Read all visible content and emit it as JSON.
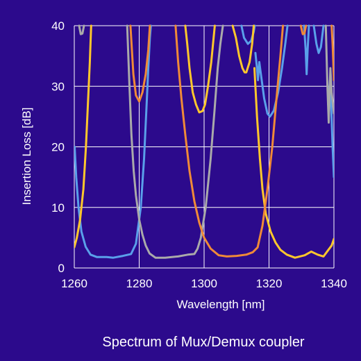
{
  "chart_data": {
    "type": "line",
    "title": "",
    "caption": "Spectrum of Mux/Demux coupler",
    "xlabel": "Wavelength [nm]",
    "ylabel": "Insertion Loss [dB]",
    "xlim": [
      1260,
      1340
    ],
    "ylim": [
      0,
      40
    ],
    "xticks": [
      1260,
      1280,
      1300,
      1320,
      1340
    ],
    "yticks": [
      0,
      10,
      20,
      30,
      40
    ],
    "grid": true,
    "colors": {
      "background": "#2c0a8c",
      "grid": "#ffffff",
      "text": "#ffffff"
    },
    "series": [
      {
        "color": "#5aa0ea",
        "points": [
          [
            1260.1,
            20
          ],
          [
            1260.6,
            15
          ],
          [
            1261.3,
            10
          ],
          [
            1262.2,
            6
          ],
          [
            1263.5,
            3.5
          ],
          [
            1265,
            2.2
          ],
          [
            1267,
            1.8
          ],
          [
            1270,
            1.8
          ],
          [
            1272,
            1.7
          ],
          [
            1275,
            2.0
          ],
          [
            1277.5,
            2.3
          ],
          [
            1279,
            4
          ],
          [
            1280.5,
            10
          ],
          [
            1281.5,
            18
          ],
          [
            1282.2,
            26
          ],
          [
            1282.8,
            33
          ],
          [
            1283.3,
            38
          ],
          [
            1283.6,
            40
          ],
          null,
          [
            1311.5,
            40
          ],
          [
            1312.3,
            38
          ],
          [
            1313.5,
            37
          ],
          [
            1314.5,
            37.5
          ],
          [
            1315.3,
            39
          ],
          [
            1315.6,
            40
          ],
          null,
          [
            1315.8,
            35.5
          ],
          [
            1316.3,
            33
          ],
          [
            1316.6,
            31
          ],
          [
            1317,
            34
          ],
          [
            1317.5,
            32
          ],
          [
            1318.5,
            28
          ],
          [
            1319.5,
            25.5
          ],
          [
            1320.3,
            25
          ],
          [
            1321.5,
            26
          ],
          [
            1322.8,
            29
          ],
          [
            1324,
            33
          ],
          [
            1325,
            37
          ],
          [
            1325.7,
            40
          ],
          null,
          [
            1330.8,
            40
          ],
          [
            1331.3,
            36
          ],
          [
            1331.6,
            32
          ],
          [
            1331.9,
            36
          ],
          [
            1332.3,
            40
          ],
          null,
          [
            1333.8,
            40
          ],
          [
            1334.6,
            37
          ],
          [
            1335.3,
            35.5
          ],
          [
            1336,
            36.5
          ],
          [
            1336.8,
            40
          ],
          null,
          [
            1338.2,
            27
          ],
          [
            1338.8,
            31
          ],
          [
            1339.2,
            26
          ],
          [
            1339.6,
            20
          ],
          [
            1340,
            15
          ]
        ]
      },
      {
        "color": "#ffc72c",
        "points": [
          [
            1260,
            3.4
          ],
          [
            1260.8,
            5
          ],
          [
            1261.8,
            8
          ],
          [
            1262.8,
            13
          ],
          [
            1263.6,
            20
          ],
          [
            1264.2,
            27
          ],
          [
            1264.8,
            34
          ],
          [
            1265.2,
            40
          ],
          null,
          [
            1294.2,
            40
          ],
          [
            1294.8,
            37
          ],
          [
            1295.5,
            33
          ],
          [
            1296.5,
            29
          ],
          [
            1297.5,
            27
          ],
          [
            1298.5,
            25.7
          ],
          [
            1299.5,
            25.9
          ],
          [
            1300.3,
            27
          ],
          [
            1301.2,
            30
          ],
          [
            1302.2,
            34
          ],
          [
            1303.3,
            40
          ],
          null,
          [
            1308.8,
            40
          ],
          [
            1309.8,
            38
          ],
          [
            1310.8,
            35
          ],
          [
            1311.8,
            33
          ],
          [
            1312.5,
            32.3
          ],
          [
            1313,
            32.3
          ],
          [
            1314,
            34
          ],
          [
            1314.8,
            37
          ],
          [
            1315.3,
            40
          ],
          null,
          [
            1315.5,
            33
          ],
          [
            1316.3,
            25
          ],
          [
            1317.2,
            18
          ],
          [
            1318,
            13
          ],
          [
            1319,
            9
          ],
          [
            1320.5,
            6
          ],
          [
            1322,
            4.2
          ],
          [
            1323.5,
            3
          ],
          [
            1325.5,
            2.2
          ],
          [
            1328,
            1.7
          ],
          [
            1331,
            2.1
          ],
          [
            1333,
            2.7
          ],
          [
            1335,
            2.2
          ],
          [
            1336.8,
            1.9
          ],
          [
            1338.3,
            3
          ],
          [
            1339.3,
            3.7
          ],
          [
            1340,
            4.8
          ]
        ]
      },
      {
        "color": "#aaaaaa",
        "points": [
          [
            1261.5,
            40
          ],
          [
            1262,
            38.6
          ],
          [
            1262.5,
            38.7
          ],
          [
            1263,
            40
          ],
          null,
          [
            1276.3,
            40
          ],
          [
            1277,
            30
          ],
          [
            1277.6,
            22
          ],
          [
            1278.3,
            16
          ],
          [
            1279,
            12
          ],
          [
            1280,
            8
          ],
          [
            1281,
            5.5
          ],
          [
            1282,
            3.7
          ],
          [
            1283.2,
            2.4
          ],
          [
            1285,
            1.7
          ],
          [
            1288,
            1.7
          ],
          [
            1292,
            1.9
          ],
          [
            1295,
            2.2
          ],
          [
            1297,
            2.3
          ],
          [
            1298,
            3.2
          ],
          [
            1299,
            5
          ],
          [
            1300.5,
            10
          ],
          [
            1302,
            18
          ],
          [
            1303.2,
            26
          ],
          [
            1304.2,
            33
          ],
          [
            1305,
            37
          ],
          [
            1305.8,
            40
          ],
          null,
          [
            1337.5,
            40
          ],
          [
            1338,
            30
          ],
          [
            1338.4,
            24
          ],
          [
            1338.6,
            28
          ],
          [
            1338.9,
            33
          ],
          [
            1339.3,
            29
          ],
          [
            1339.7,
            27
          ],
          [
            1340,
            25.5
          ]
        ]
      },
      {
        "color": "#f08a38",
        "points": [
          [
            1277.3,
            40
          ],
          [
            1278.2,
            32
          ],
          [
            1279,
            28.5
          ],
          [
            1280,
            27.5
          ],
          [
            1281,
            29
          ],
          [
            1282,
            32
          ],
          [
            1282.8,
            36
          ],
          [
            1283.3,
            40
          ],
          null,
          [
            1291.2,
            40
          ],
          [
            1292,
            34
          ],
          [
            1293,
            28
          ],
          [
            1294.2,
            22
          ],
          [
            1295.5,
            16
          ],
          [
            1297,
            11
          ],
          [
            1298.5,
            7.5
          ],
          [
            1300,
            5
          ],
          [
            1302,
            3.2
          ],
          [
            1304.5,
            2.1
          ],
          [
            1307,
            1.9
          ],
          [
            1310,
            2.0
          ],
          [
            1313,
            2.2
          ],
          [
            1315,
            2.6
          ],
          [
            1316.5,
            3.4
          ],
          [
            1318,
            7
          ],
          [
            1319.5,
            13
          ],
          [
            1321,
            20
          ],
          [
            1322.3,
            28
          ],
          [
            1323.5,
            35
          ],
          [
            1324.3,
            40
          ],
          null,
          [
            1329.8,
            40
          ],
          [
            1330.4,
            38.6
          ],
          [
            1330.9,
            38.7
          ],
          [
            1331.4,
            40
          ],
          null,
          [
            1339.3,
            40
          ],
          [
            1339.6,
            37
          ],
          [
            1339.8,
            34
          ],
          [
            1340,
            31
          ]
        ]
      }
    ]
  }
}
